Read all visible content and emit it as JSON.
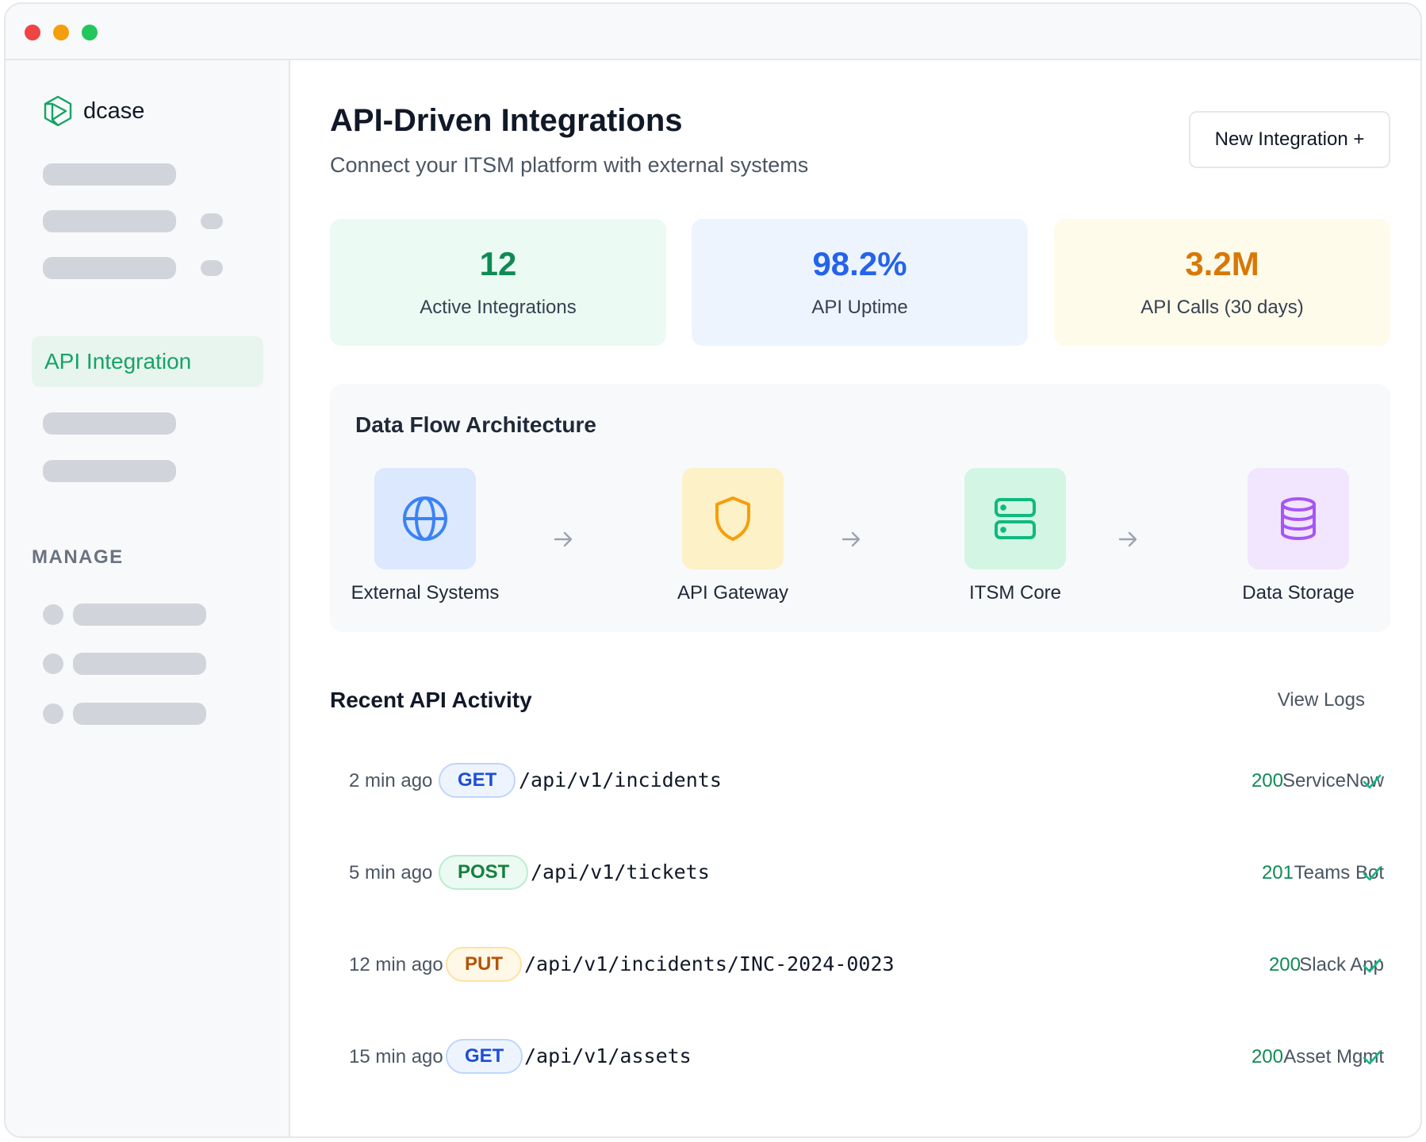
{
  "window": {
    "colors": {
      "close": "#ef4444",
      "minimize": "#f59e0b",
      "maximize": "#22c55e"
    }
  },
  "sidebar": {
    "brand": {
      "name": "dcase",
      "icon": "cube-logo-icon"
    },
    "active_item": {
      "label": "API Integration"
    },
    "section_label": "MANAGE"
  },
  "header": {
    "title": "API-Driven Integrations",
    "subtitle": "Connect your ITSM platform with external systems",
    "new_button_label": "New Integration +"
  },
  "stats": [
    {
      "value": "12",
      "label": "Active Integrations",
      "color": "#0f8a55"
    },
    {
      "value": "98.2%",
      "label": "API Uptime",
      "color": "#2563eb"
    },
    {
      "value": "3.2M",
      "label": "API Calls (30 days)",
      "color": "#d97706"
    }
  ],
  "flow": {
    "title": "Data Flow Architecture",
    "nodes": [
      {
        "label": "External Systems",
        "icon": "globe-icon"
      },
      {
        "label": "API Gateway",
        "icon": "shield-icon"
      },
      {
        "label": "ITSM Core",
        "icon": "server-icon"
      },
      {
        "label": "Data Storage",
        "icon": "database-icon"
      }
    ]
  },
  "activity": {
    "title": "Recent API Activity",
    "view_logs_label": "View Logs",
    "rows": [
      {
        "time": "2 min ago",
        "method": "GET",
        "path": "/api/v1/incidents",
        "status": "200",
        "service": "ServiceNow"
      },
      {
        "time": "5 min ago",
        "method": "POST",
        "path": "/api/v1/tickets",
        "status": "201",
        "service": "Teams Bot"
      },
      {
        "time": "12 min ago",
        "method": "PUT",
        "path": "/api/v1/incidents/INC-2024-0023",
        "status": "200",
        "service": "Slack App"
      },
      {
        "time": "15 min ago",
        "method": "GET",
        "path": "/api/v1/assets",
        "status": "200",
        "service": "Asset Mgmt"
      }
    ]
  }
}
